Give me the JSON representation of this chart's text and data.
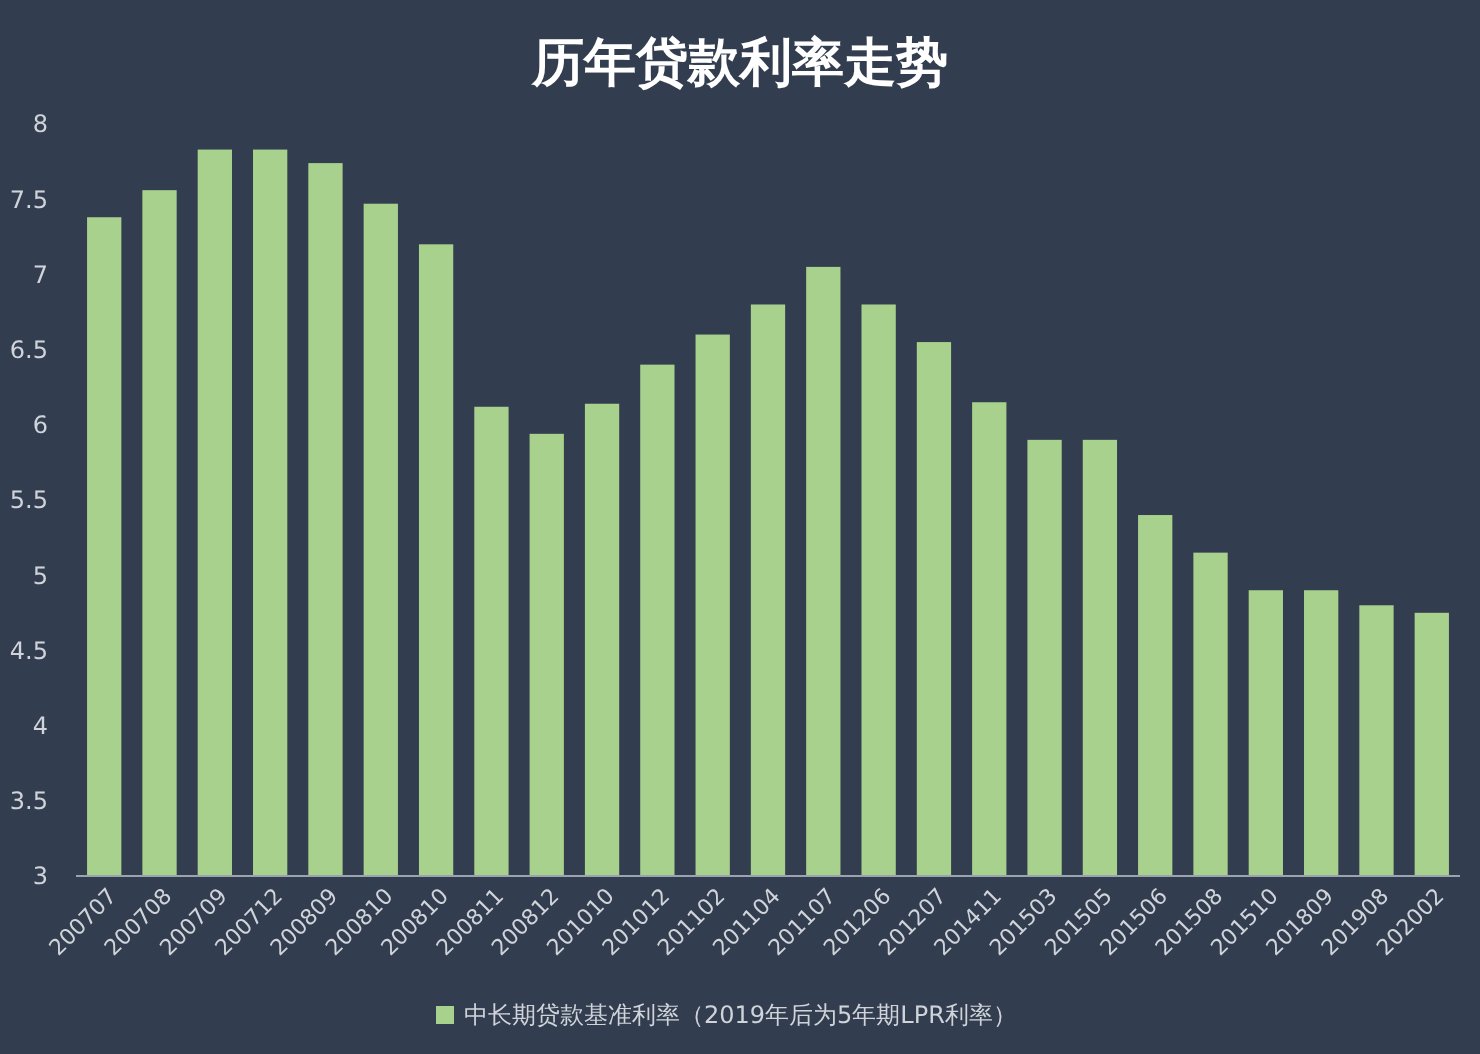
{
  "chart_data": {
    "type": "bar",
    "title": "历年贷款利率走势",
    "categories": [
      "200707",
      "200708",
      "200709",
      "200712",
      "200809",
      "200810",
      "200810",
      "200811",
      "200812",
      "201010",
      "201012",
      "201102",
      "201104",
      "201107",
      "201206",
      "201207",
      "201411",
      "201503",
      "201505",
      "201506",
      "201508",
      "201510",
      "201809",
      "201908",
      "202002"
    ],
    "series": [
      {
        "name": "中长期贷款基准利率（2019年后为5年期LPR利率）",
        "color": "#a9d18e",
        "values": [
          7.38,
          7.56,
          7.83,
          7.83,
          7.74,
          7.47,
          7.2,
          6.12,
          5.94,
          6.14,
          6.4,
          6.6,
          6.8,
          7.05,
          6.8,
          6.55,
          6.15,
          5.9,
          5.9,
          5.4,
          5.15,
          4.9,
          4.9,
          4.8,
          4.75
        ]
      }
    ],
    "ylim": [
      3,
      8
    ],
    "yticks": [
      3,
      3.5,
      4,
      4.5,
      5,
      5.5,
      6,
      6.5,
      7,
      7.5,
      8
    ],
    "grid": false,
    "legend": "bottom"
  }
}
